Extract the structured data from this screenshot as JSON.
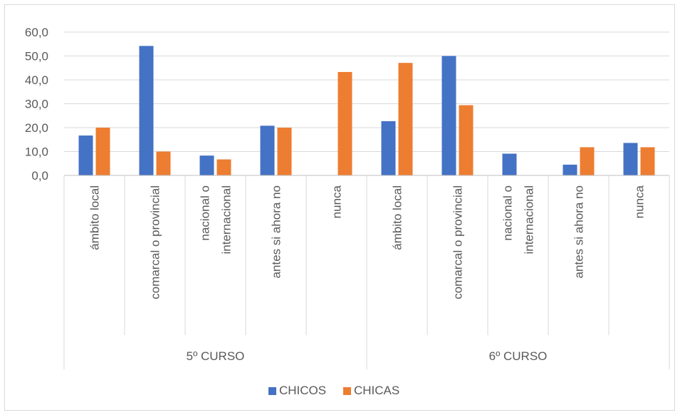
{
  "chart_data": {
    "type": "bar",
    "title": "",
    "xlabel": "",
    "ylabel": "",
    "ylim": [
      0,
      60
    ],
    "yticks": [
      "0,0",
      "10,0",
      "20,0",
      "30,0",
      "40,0",
      "50,0",
      "60,0"
    ],
    "grid": true,
    "legend": "bottom",
    "groups": [
      {
        "label": "5º CURSO",
        "categories": [
          [
            "ámbito local"
          ],
          [
            "comarcal o provincial"
          ],
          [
            "nacional o",
            "internacional"
          ],
          [
            "antes si ahora no"
          ],
          [
            "nunca"
          ]
        ]
      },
      {
        "label": "6º CURSO",
        "categories": [
          [
            "ámbito local"
          ],
          [
            "comarcal o provincial"
          ],
          [
            "nacional o",
            "internacional"
          ],
          [
            "antes si ahora no"
          ],
          [
            "nunca"
          ]
        ]
      }
    ],
    "series": [
      {
        "name": "CHICOS",
        "color": "#4472c4",
        "values": [
          16.7,
          54.2,
          8.3,
          20.8,
          0,
          22.7,
          50.0,
          9.1,
          4.5,
          13.6
        ]
      },
      {
        "name": "CHICAS",
        "color": "#ed7d31",
        "values": [
          20.0,
          10.0,
          6.7,
          20.0,
          43.3,
          47.1,
          29.4,
          0,
          11.8,
          11.8
        ]
      }
    ]
  }
}
